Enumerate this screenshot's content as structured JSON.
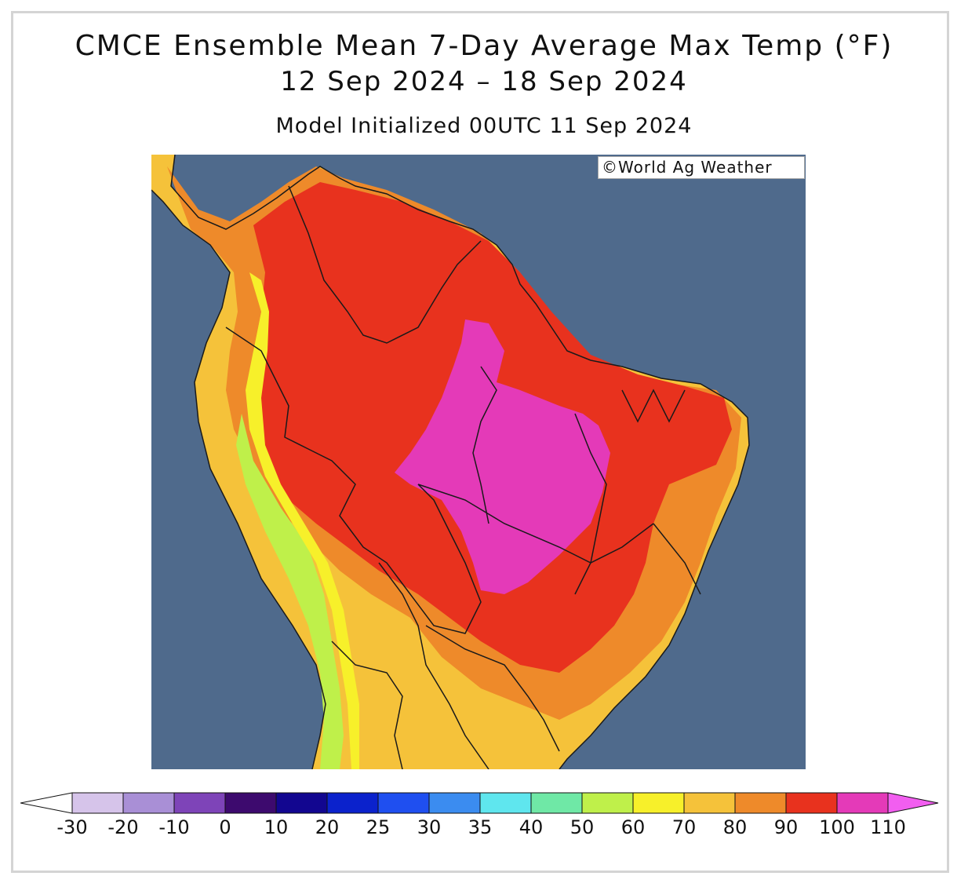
{
  "title": {
    "line1": "CMCE Ensemble Mean 7-Day Average Max Temp (°F)",
    "line2": "12 Sep 2024 – 18 Sep 2024",
    "line3": "Model Initialized 00UTC 11 Sep 2024"
  },
  "credit": "©World Ag Weather",
  "colors": {
    "ocean": "#4f6a8c",
    "border": "#1a1a1a"
  },
  "legend": {
    "bins": [
      {
        "color": "#d6c4ea"
      },
      {
        "color": "#a98fd6"
      },
      {
        "color": "#7e44b8"
      },
      {
        "color": "#3d0a6e"
      },
      {
        "color": "#120690"
      },
      {
        "color": "#0b22cc"
      },
      {
        "color": "#1f4ff0"
      },
      {
        "color": "#3b8cf0"
      },
      {
        "color": "#5fe6ee"
      },
      {
        "color": "#6fe8a6"
      },
      {
        "color": "#bff04a"
      },
      {
        "color": "#f7f02a"
      },
      {
        "color": "#f5c23a"
      },
      {
        "color": "#ee8a2a"
      },
      {
        "color": "#e8321e"
      },
      {
        "color": "#e43ab8"
      }
    ],
    "under_color": "#ffffff",
    "over_color": "#f25ef0",
    "ticks": [
      "-30",
      "-20",
      "-10",
      "0",
      "10",
      "20",
      "25",
      "30",
      "35",
      "40",
      "50",
      "60",
      "70",
      "80",
      "90",
      "100",
      "110"
    ]
  }
}
